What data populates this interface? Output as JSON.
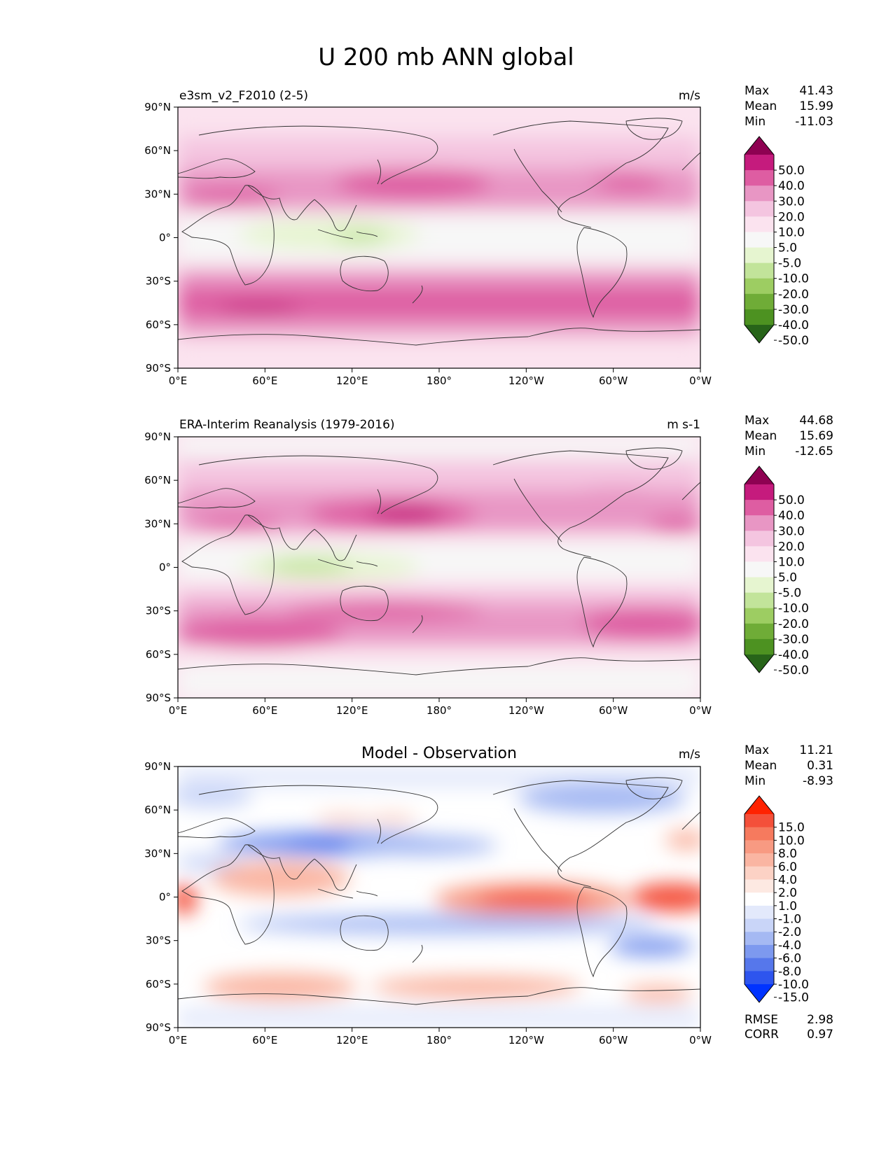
{
  "figure": {
    "title": "U 200 mb ANN global"
  },
  "lat_ticks": [
    "90°N",
    "60°N",
    "30°N",
    "0°",
    "30°S",
    "60°S",
    "90°S"
  ],
  "lon_ticks": [
    "0°E",
    "60°E",
    "120°E",
    "180°",
    "120°W",
    "60°W",
    "0°W"
  ],
  "panels": [
    {
      "title_left": "e3sm_v2_F2010 (2-5)",
      "title_center": "",
      "units": "m/s",
      "stats": [
        {
          "label": "Max",
          "value": "41.43"
        },
        {
          "label": "Mean",
          "value": "15.99"
        },
        {
          "label": "Min",
          "value": "-11.03"
        }
      ],
      "colorbar": {
        "levels": [
          "50.0",
          "40.0",
          "30.0",
          "20.0",
          "10.0",
          "5.0",
          "-5.0",
          "-10.0",
          "-20.0",
          "-30.0",
          "-40.0",
          "-50.0"
        ],
        "colors": [
          "#8e0152",
          "#c51b7d",
          "#de5da2",
          "#e896c4",
          "#f4c5e0",
          "#fbe3ef",
          "#f7f7f7",
          "#e6f5d0",
          "#c2e49a",
          "#9dcd62",
          "#6fac37",
          "#4d9221",
          "#276419"
        ]
      },
      "extra_stats": []
    },
    {
      "title_left": "ERA-Interim Reanalysis (1979-2016)",
      "title_center": "",
      "units": "m s-1",
      "stats": [
        {
          "label": "Max",
          "value": "44.68"
        },
        {
          "label": "Mean",
          "value": "15.69"
        },
        {
          "label": "Min",
          "value": "-12.65"
        }
      ],
      "colorbar": {
        "levels": [
          "50.0",
          "40.0",
          "30.0",
          "20.0",
          "10.0",
          "5.0",
          "-5.0",
          "-10.0",
          "-20.0",
          "-30.0",
          "-40.0",
          "-50.0"
        ],
        "colors": [
          "#8e0152",
          "#c51b7d",
          "#de5da2",
          "#e896c4",
          "#f4c5e0",
          "#fbe3ef",
          "#f7f7f7",
          "#e6f5d0",
          "#c2e49a",
          "#9dcd62",
          "#6fac37",
          "#4d9221",
          "#276419"
        ]
      },
      "extra_stats": []
    },
    {
      "title_left": "",
      "title_center": "Model - Observation",
      "units": "m/s",
      "stats": [
        {
          "label": "Max",
          "value": "11.21"
        },
        {
          "label": "Mean",
          "value": "0.31"
        },
        {
          "label": "Min",
          "value": "-8.93"
        }
      ],
      "colorbar": {
        "levels": [
          "15.0",
          "10.0",
          "8.0",
          "6.0",
          "4.0",
          "2.0",
          "1.0",
          "-1.0",
          "-2.0",
          "-4.0",
          "-6.0",
          "-8.0",
          "-10.0",
          "-15.0"
        ],
        "colors": [
          "#ff2200",
          "#f4503a",
          "#f67a5e",
          "#f89a82",
          "#fab5a2",
          "#fcd2c5",
          "#fde9e2",
          "#ffffff",
          "#e3e9fb",
          "#c9d5f8",
          "#a5b9f3",
          "#7d99ef",
          "#5677eb",
          "#2e55ee",
          "#0033ff"
        ]
      },
      "extra_stats": [
        {
          "label": "RMSE",
          "value": "2.98"
        },
        {
          "label": "CORR",
          "value": "0.97"
        }
      ]
    }
  ]
}
